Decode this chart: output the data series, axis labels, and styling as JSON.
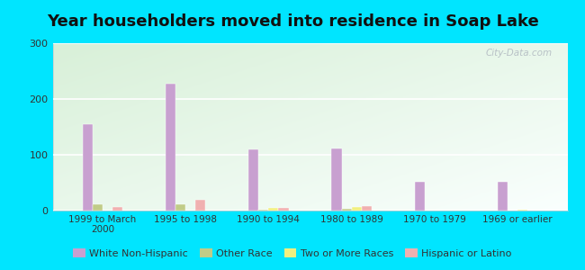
{
  "title": "Year householders moved into residence in Soap Lake",
  "categories": [
    "1999 to March\n2000",
    "1995 to 1998",
    "1990 to 1994",
    "1980 to 1989",
    "1970 to 1979",
    "1969 or earlier"
  ],
  "series": {
    "White Non-Hispanic": [
      155,
      228,
      110,
      111,
      52,
      52
    ],
    "Other Race": [
      12,
      12,
      2,
      3,
      0,
      0
    ],
    "Two or More Races": [
      0,
      0,
      5,
      7,
      0,
      2
    ],
    "Hispanic or Latino": [
      7,
      20,
      5,
      8,
      0,
      0
    ]
  },
  "colors": {
    "White Non-Hispanic": "#c8a0d0",
    "Other Race": "#c0cc88",
    "Two or More Races": "#f0f080",
    "Hispanic or Latino": "#f0b0b0"
  },
  "ylim": [
    0,
    300
  ],
  "yticks": [
    0,
    100,
    200,
    300
  ],
  "bg_color_topleft": "#d8f0d8",
  "bg_color_topright": "#e8f8e8",
  "bg_color_bottom": "#f5fff5",
  "outer_background": "#00e5ff",
  "watermark": "City-Data.com",
  "bar_width": 0.12,
  "title_fontsize": 13
}
